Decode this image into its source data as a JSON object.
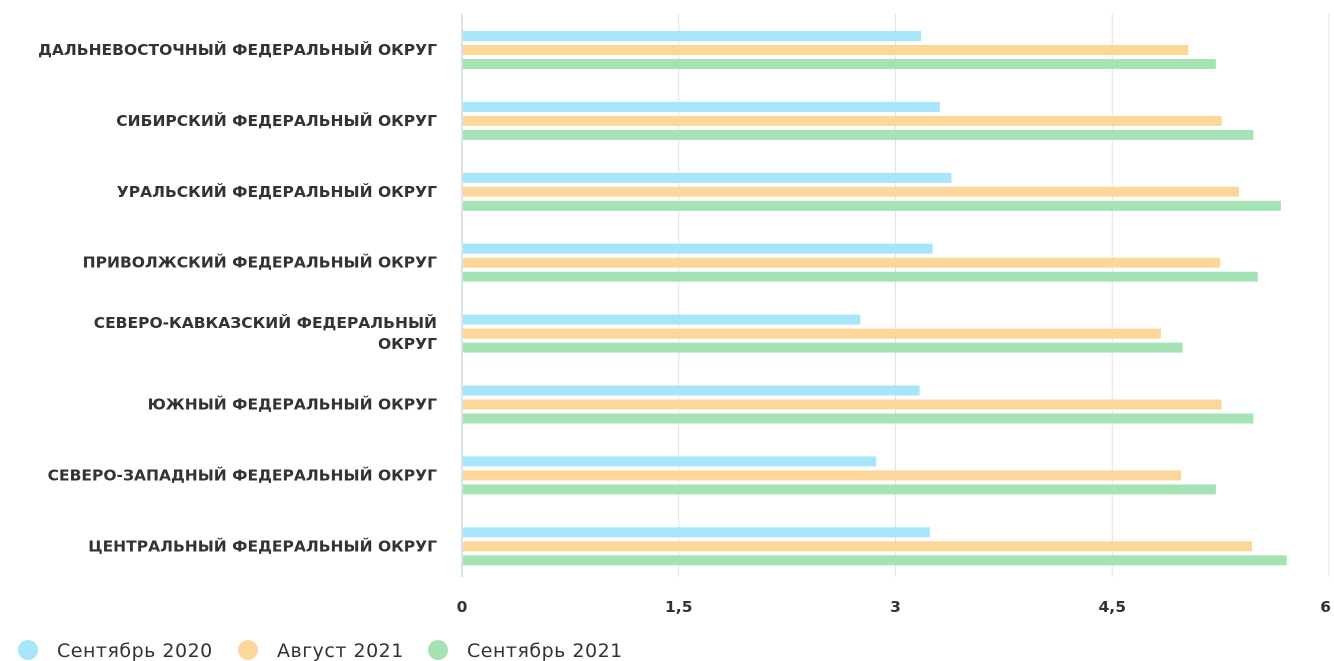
{
  "chart_data": {
    "type": "bar",
    "orientation": "horizontal",
    "categories": [
      [
        "ДАЛЬНЕВОСТОЧНЫЙ ФЕДЕРАЛЬНЫЙ ОКРУГ"
      ],
      [
        "СИБИРСКИЙ ФЕДЕРАЛЬНЫЙ ОКРУГ"
      ],
      [
        "УРАЛЬСКИЙ ФЕДЕРАЛЬНЫЙ ОКРУГ"
      ],
      [
        "ПРИВОЛЖСКИЙ ФЕДЕРАЛЬНЫЙ ОКРУГ"
      ],
      [
        "СЕВЕРО-КАВКАЗСКИЙ ФЕДЕРАЛЬНЫЙ",
        "ОКРУГ"
      ],
      [
        "ЮЖНЫЙ ФЕДЕРАЛЬНЫЙ ОКРУГ"
      ],
      [
        "СЕВЕРО-ЗАПАДНЫЙ ФЕДЕРАЛЬНЫЙ ОКРУГ"
      ],
      [
        "ЦЕНТРАЛЬНЫЙ ФЕДЕРАЛЬНЫЙ ОКРУГ"
      ]
    ],
    "series": [
      {
        "name": "Сентябрь 2020",
        "color": "#a7e5fb",
        "values": [
          3.17,
          3.3,
          3.38,
          3.25,
          2.75,
          3.16,
          2.86,
          3.23
        ]
      },
      {
        "name": "Август 2021",
        "color": "#fdd69a",
        "values": [
          5.02,
          5.25,
          5.37,
          5.24,
          4.83,
          5.25,
          4.97,
          5.46
        ]
      },
      {
        "name": "Сентябрь 2021",
        "color": "#a5e3b4",
        "values": [
          5.21,
          5.47,
          5.66,
          5.5,
          4.98,
          5.47,
          5.21,
          5.7
        ]
      }
    ],
    "xlim": [
      0,
      6
    ],
    "xticks": [
      0,
      1.5,
      3,
      4.5,
      6
    ],
    "xtick_labels": [
      "0",
      "1,5",
      "3",
      "4,5",
      "6"
    ],
    "grid": true,
    "legend_position": "bottom-left"
  }
}
